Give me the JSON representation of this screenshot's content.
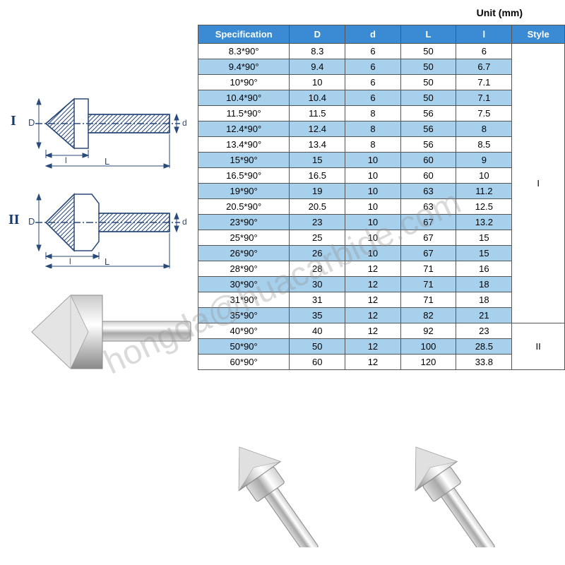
{
  "unit_label": "Unit (mm)",
  "table": {
    "headers": [
      "Specification",
      "D",
      "d",
      "L",
      "l",
      "Style"
    ],
    "rows": [
      {
        "spec": "8.3*90°",
        "D": "8.3",
        "d": "6",
        "L": "50",
        "l": "6",
        "alt": false
      },
      {
        "spec": "9.4*90°",
        "D": "9.4",
        "d": "6",
        "L": "50",
        "l": "6.7",
        "alt": true
      },
      {
        "spec": "10*90°",
        "D": "10",
        "d": "6",
        "L": "50",
        "l": "7.1",
        "alt": false
      },
      {
        "spec": "10.4*90°",
        "D": "10.4",
        "d": "6",
        "L": "50",
        "l": "7.1",
        "alt": true
      },
      {
        "spec": "11.5*90°",
        "D": "11.5",
        "d": "8",
        "L": "56",
        "l": "7.5",
        "alt": false
      },
      {
        "spec": "12.4*90°",
        "D": "12.4",
        "d": "8",
        "L": "56",
        "l": "8",
        "alt": true
      },
      {
        "spec": "13.4*90°",
        "D": "13.4",
        "d": "8",
        "L": "56",
        "l": "8.5",
        "alt": false
      },
      {
        "spec": "15*90°",
        "D": "15",
        "d": "10",
        "L": "60",
        "l": "9",
        "alt": true
      },
      {
        "spec": "16.5*90°",
        "D": "16.5",
        "d": "10",
        "L": "60",
        "l": "10",
        "alt": false
      },
      {
        "spec": "19*90°",
        "D": "19",
        "d": "10",
        "L": "63",
        "l": "11.2",
        "alt": true
      },
      {
        "spec": "20.5*90°",
        "D": "20.5",
        "d": "10",
        "L": "63",
        "l": "12.5",
        "alt": false
      },
      {
        "spec": "23*90°",
        "D": "23",
        "d": "10",
        "L": "67",
        "l": "13.2",
        "alt": true
      },
      {
        "spec": "25*90°",
        "D": "25",
        "d": "10",
        "L": "67",
        "l": "15",
        "alt": false
      },
      {
        "spec": "26*90°",
        "D": "26",
        "d": "10",
        "L": "67",
        "l": "15",
        "alt": true
      },
      {
        "spec": "28*90°",
        "D": "28",
        "d": "12",
        "L": "71",
        "l": "16",
        "alt": false
      },
      {
        "spec": "30*90°",
        "D": "30",
        "d": "12",
        "L": "71",
        "l": "18",
        "alt": true
      },
      {
        "spec": "31*90°",
        "D": "31",
        "d": "12",
        "L": "71",
        "l": "18",
        "alt": false
      },
      {
        "spec": "35*90°",
        "D": "35",
        "d": "12",
        "L": "82",
        "l": "21",
        "alt": true
      },
      {
        "spec": "40*90°",
        "D": "40",
        "d": "12",
        "L": "92",
        "l": "23",
        "alt": false
      },
      {
        "spec": "50*90°",
        "D": "50",
        "d": "12",
        "L": "100",
        "l": "28.5",
        "alt": true
      },
      {
        "spec": "60*90°",
        "D": "60",
        "d": "12",
        "L": "120",
        "l": "33.8",
        "alt": false
      }
    ],
    "style_groups": [
      {
        "label": "I",
        "span": 18
      },
      {
        "label": "II",
        "span": 3
      }
    ],
    "header_bg": "#3b8bd4",
    "header_fg": "#ffffff",
    "alt_row_bg": "#a7d0ed",
    "border_color": "#555555"
  },
  "drawings": {
    "label_I": "I",
    "label_II": "II",
    "dim_D": "D",
    "dim_d": "d",
    "dim_L": "L",
    "dim_l": "l",
    "stroke": "#2a4a7a",
    "fill_hatch": "#2a4a7a"
  },
  "watermark": "hongda@huacarbide.com",
  "tool_render": {
    "body_gradient": [
      "#e8e8e8",
      "#ffffff",
      "#b0b0b0",
      "#d8d8d8"
    ],
    "tip_gradient": [
      "#c8c8c8",
      "#ffffff",
      "#909090"
    ],
    "outline": "#707070"
  }
}
